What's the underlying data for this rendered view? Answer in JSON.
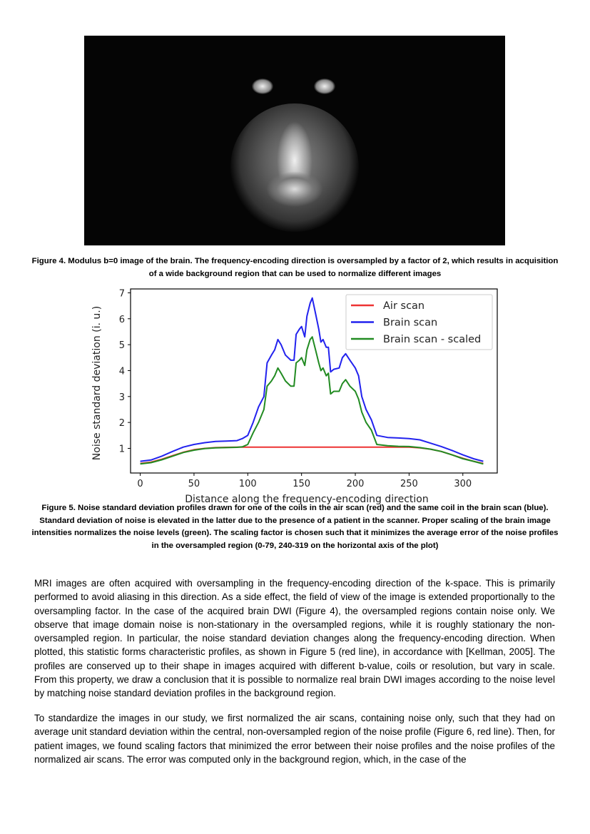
{
  "figure4": {
    "caption": "Figure 4. Modulus b=0 image of the brain. The frequency-encoding direction is oversampled by a factor of 2, which results in acquisition of a wide background region that can be used to normalize different images"
  },
  "figure5": {
    "caption": "Figure 5. Noise standard deviation profiles drawn for one of the coils in the air scan (red) and the same coil in the brain scan (blue). Standard deviation of noise is elevated in the latter due to the presence of a patient in the scanner. Proper scaling of the brain image intensities normalizes the noise levels (green). The scaling factor is chosen such that it minimizes the average error of the noise profiles in the oversampled region (0-79, 240-319 on the horizontal axis of the plot)"
  },
  "chart_data": {
    "type": "line",
    "xlabel": "Distance along the frequency-encoding direction",
    "ylabel": "Noise standard deviation (i. u.)",
    "xlim": [
      -9,
      332
    ],
    "ylim": [
      0.05,
      7.15
    ],
    "xticks": [
      0,
      50,
      100,
      150,
      200,
      250,
      300
    ],
    "yticks": [
      1,
      2,
      3,
      4,
      5,
      6,
      7
    ],
    "grid": false,
    "legend": "top-right",
    "series": [
      {
        "name": "Air scan",
        "color": "#ee3333",
        "x": [
          0,
          10,
          20,
          30,
          40,
          50,
          60,
          70,
          80,
          90,
          100,
          120,
          140,
          160,
          180,
          200,
          220,
          240,
          250,
          260,
          270,
          280,
          290,
          300,
          310,
          319
        ],
        "y": [
          0.42,
          0.47,
          0.58,
          0.72,
          0.85,
          0.95,
          1.0,
          1.03,
          1.04,
          1.05,
          1.05,
          1.05,
          1.05,
          1.05,
          1.05,
          1.05,
          1.05,
          1.05,
          1.05,
          1.02,
          0.97,
          0.88,
          0.75,
          0.62,
          0.5,
          0.42
        ]
      },
      {
        "name": "Brain scan",
        "color": "#2222ee",
        "x": [
          0,
          10,
          20,
          30,
          40,
          50,
          60,
          70,
          80,
          90,
          95,
          100,
          105,
          110,
          115,
          118,
          122,
          125,
          128,
          131,
          135,
          140,
          143,
          145,
          148,
          150,
          153,
          155,
          158,
          160,
          163,
          166,
          168,
          170,
          173,
          175,
          177,
          180,
          185,
          188,
          191,
          195,
          200,
          203,
          206,
          210,
          215,
          220,
          230,
          240,
          250,
          260,
          270,
          280,
          290,
          300,
          310,
          319
        ],
        "y": [
          0.5,
          0.55,
          0.7,
          0.88,
          1.05,
          1.15,
          1.22,
          1.27,
          1.28,
          1.3,
          1.38,
          1.5,
          2.0,
          2.6,
          3.0,
          4.3,
          4.6,
          4.8,
          5.2,
          5.0,
          4.6,
          4.4,
          4.4,
          5.4,
          5.6,
          5.7,
          5.3,
          6.1,
          6.6,
          6.8,
          6.2,
          5.6,
          5.1,
          5.2,
          4.9,
          4.9,
          3.95,
          4.05,
          4.1,
          4.5,
          4.65,
          4.4,
          4.1,
          3.8,
          3.0,
          2.5,
          2.1,
          1.5,
          1.42,
          1.4,
          1.38,
          1.33,
          1.2,
          1.07,
          0.92,
          0.75,
          0.6,
          0.5
        ]
      },
      {
        "name": "Brain scan - scaled",
        "color": "#228b22",
        "x": [
          0,
          10,
          20,
          30,
          40,
          50,
          60,
          70,
          80,
          90,
          95,
          100,
          105,
          110,
          115,
          118,
          122,
          125,
          128,
          131,
          135,
          140,
          143,
          145,
          148,
          150,
          153,
          155,
          158,
          160,
          163,
          166,
          168,
          170,
          173,
          175,
          177,
          180,
          185,
          188,
          191,
          195,
          200,
          203,
          206,
          210,
          215,
          220,
          230,
          240,
          250,
          260,
          270,
          280,
          290,
          300,
          310,
          319
        ],
        "y": [
          0.4,
          0.45,
          0.56,
          0.7,
          0.84,
          0.93,
          0.99,
          1.02,
          1.03,
          1.04,
          1.06,
          1.15,
          1.6,
          2.0,
          2.5,
          3.4,
          3.6,
          3.8,
          4.1,
          3.9,
          3.6,
          3.4,
          3.4,
          4.3,
          4.4,
          4.5,
          4.2,
          4.8,
          5.2,
          5.3,
          4.8,
          4.3,
          4.0,
          4.1,
          3.8,
          3.9,
          3.1,
          3.2,
          3.2,
          3.5,
          3.65,
          3.4,
          3.2,
          2.9,
          2.4,
          2.0,
          1.7,
          1.15,
          1.1,
          1.08,
          1.07,
          1.03,
          0.97,
          0.88,
          0.75,
          0.6,
          0.5,
          0.4
        ]
      }
    ]
  },
  "body": {
    "paragraph1": "MRI images are often acquired with oversampling in the frequency-encoding direction of the k-space. This is primarily performed to avoid aliasing in this direction. As a side effect, the field of view of the image is extended proportionally to the oversampling factor. In the case of the acquired brain DWI (Figure 4), the oversampled regions contain noise only. We observe that image domain noise is non-stationary in the oversampled regions, while it is roughly stationary the non-oversampled region. In particular, the noise standard deviation changes along the frequency-encoding direction. When plotted, this statistic forms characteristic profiles, as shown in Figure 5 (red line), in accordance with [Kellman, 2005]. The profiles are conserved up to their shape in images acquired with different b-value, coils or resolution, but vary in scale. From this property, we draw a conclusion that it is possible to normalize real brain DWI images according to the noise level by matching noise standard deviation profiles in the background region.",
    "paragraph2": "To standardize the images in our study, we first normalized the air scans, containing noise only, such that they had on average unit standard deviation within the central, non-oversampled region of the noise profile (Figure 6, red line). Then, for patient images, we found scaling factors that minimized the error between their noise profiles and the noise profiles of the normalized air scans. The error was computed only in the background region, which, in the case of the"
  }
}
